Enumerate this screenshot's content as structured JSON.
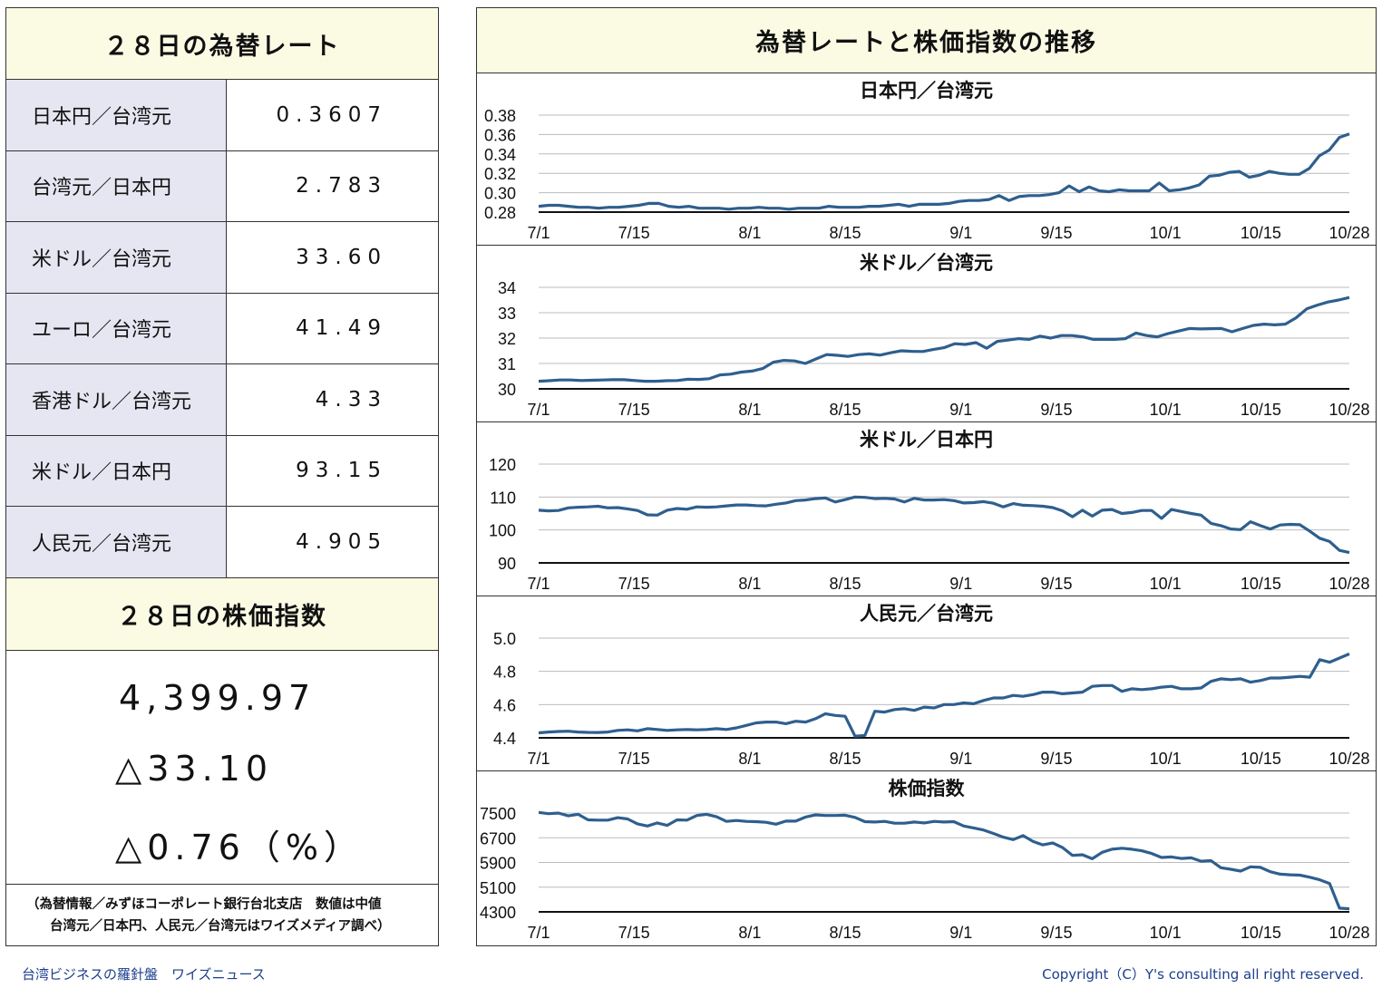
{
  "left_panel": {
    "rates_title": "２８日の為替レート",
    "rates": [
      {
        "label": "日本円／台湾元",
        "value": "0.3607"
      },
      {
        "label": "台湾元／日本円",
        "value": "2.783"
      },
      {
        "label": "米ドル／台湾元",
        "value": "33.60"
      },
      {
        "label": "ユーロ／台湾元",
        "value": "41.49"
      },
      {
        "label": "香港ドル／台湾元",
        "value": "4.33"
      },
      {
        "label": "米ドル／日本円",
        "value": "93.15"
      },
      {
        "label": "人民元／台湾元",
        "value": "4.905"
      }
    ],
    "stock_title": "２８日の株価指数",
    "stock_index": "4,399.97",
    "stock_change": "△33.10",
    "stock_change_pct": "△0.76（%）",
    "note_line1": "（為替情報／みずほコーポレート銀行台北支店　数値は中値",
    "note_line2": "台湾元／日本円、人民元／台湾元はワイズメディア調べ）"
  },
  "right_panel": {
    "title": "為替レートと株価指数の推移"
  },
  "footer": {
    "left": "台湾ビジネスの羅針盤　ワイズニュース",
    "right": "Copyright（C）Y's consulting all right reserved."
  },
  "chart_data": [
    {
      "type": "line",
      "title": "日本円／台湾元",
      "x_ticks": [
        "7/1",
        "7/15",
        "8/1",
        "8/15",
        "9/1",
        "9/15",
        "10/1",
        "10/15",
        "10/28"
      ],
      "y_ticks": [
        "0.28",
        "0.30",
        "0.32",
        "0.34",
        "0.36",
        "0.38"
      ],
      "ylim": [
        0.28,
        0.38
      ],
      "color": "#2e5f8e",
      "values": [
        0.286,
        0.287,
        0.287,
        0.286,
        0.285,
        0.285,
        0.284,
        0.285,
        0.285,
        0.286,
        0.287,
        0.289,
        0.289,
        0.286,
        0.285,
        0.286,
        0.284,
        0.284,
        0.284,
        0.283,
        0.284,
        0.284,
        0.285,
        0.284,
        0.284,
        0.283,
        0.284,
        0.284,
        0.284,
        0.286,
        0.285,
        0.285,
        0.285,
        0.286,
        0.286,
        0.287,
        0.288,
        0.286,
        0.288,
        0.288,
        0.288,
        0.289,
        0.291,
        0.292,
        0.292,
        0.293,
        0.297,
        0.292,
        0.296,
        0.297,
        0.297,
        0.298,
        0.3,
        0.307,
        0.301,
        0.306,
        0.302,
        0.301,
        0.303,
        0.302,
        0.302,
        0.302,
        0.31,
        0.302,
        0.303,
        0.305,
        0.308,
        0.317,
        0.318,
        0.321,
        0.322,
        0.316,
        0.318,
        0.322,
        0.32,
        0.319,
        0.319,
        0.325,
        0.338,
        0.344,
        0.357,
        0.3607
      ]
    },
    {
      "type": "line",
      "title": "米ドル／台湾元",
      "x_ticks": [
        "7/1",
        "7/15",
        "8/1",
        "8/15",
        "9/1",
        "9/15",
        "10/1",
        "10/15",
        "10/28"
      ],
      "y_ticks": [
        "30",
        "31",
        "32",
        "33",
        "34"
      ],
      "ylim": [
        30,
        34
      ],
      "color": "#2e5f8e",
      "values": [
        30.3,
        30.32,
        30.35,
        30.35,
        30.33,
        30.34,
        30.35,
        30.36,
        30.36,
        30.33,
        30.3,
        30.3,
        30.32,
        30.33,
        30.38,
        30.37,
        30.4,
        30.55,
        30.58,
        30.66,
        30.7,
        30.8,
        31.05,
        31.12,
        31.1,
        31.0,
        31.18,
        31.35,
        31.32,
        31.28,
        31.35,
        31.38,
        31.33,
        31.42,
        31.5,
        31.48,
        31.47,
        31.55,
        31.62,
        31.78,
        31.75,
        31.82,
        31.6,
        31.87,
        31.92,
        31.98,
        31.95,
        32.08,
        32.0,
        32.1,
        32.1,
        32.05,
        31.95,
        31.95,
        31.95,
        31.98,
        32.2,
        32.1,
        32.05,
        32.18,
        32.28,
        32.38,
        32.36,
        32.37,
        32.38,
        32.25,
        32.38,
        32.5,
        32.55,
        32.52,
        32.55,
        32.8,
        33.15,
        33.3,
        33.42,
        33.5,
        33.6
      ]
    },
    {
      "type": "line",
      "title": "米ドル／日本円",
      "x_ticks": [
        "7/1",
        "7/15",
        "8/1",
        "8/15",
        "9/1",
        "9/15",
        "10/1",
        "10/15",
        "10/28"
      ],
      "y_ticks": [
        "90",
        "100",
        "110",
        "120"
      ],
      "ylim": [
        90,
        120
      ],
      "color": "#2e5f8e",
      "values": [
        106,
        105.8,
        105.9,
        106.7,
        106.9,
        107.0,
        107.2,
        106.7,
        106.8,
        106.4,
        105.9,
        104.6,
        104.5,
        106.0,
        106.5,
        106.3,
        107.0,
        106.9,
        107.0,
        107.3,
        107.6,
        107.6,
        107.4,
        107.3,
        107.8,
        108.2,
        108.9,
        109.1,
        109.5,
        109.7,
        108.5,
        109.2,
        110.0,
        109.9,
        109.5,
        109.6,
        109.4,
        108.5,
        109.6,
        109.1,
        109.1,
        109.2,
        108.9,
        108.2,
        108.3,
        108.6,
        108.1,
        107.0,
        108.0,
        107.5,
        107.4,
        107.2,
        106.8,
        105.8,
        104.0,
        106.0,
        104.2,
        106.0,
        106.2,
        105.0,
        105.3,
        105.9,
        105.9,
        103.5,
        106.2,
        105.6,
        105.0,
        104.5,
        102.0,
        101.3,
        100.3,
        100.1,
        102.5,
        101.3,
        100.3,
        101.5,
        101.7,
        101.6,
        99.6,
        97.5,
        96.5,
        93.8,
        93.15
      ]
    },
    {
      "type": "line",
      "title": "人民元／台湾元",
      "x_ticks": [
        "7/1",
        "7/15",
        "8/1",
        "8/15",
        "9/1",
        "9/15",
        "10/1",
        "10/15",
        "10/28"
      ],
      "y_ticks": [
        "4.4",
        "4.6",
        "4.8",
        "5.0"
      ],
      "ylim": [
        4.4,
        5.0
      ],
      "color": "#2e5f8e",
      "values": [
        4.43,
        4.435,
        4.438,
        4.44,
        4.435,
        4.433,
        4.432,
        4.435,
        4.445,
        4.448,
        4.442,
        4.455,
        4.45,
        4.445,
        4.448,
        4.45,
        4.448,
        4.45,
        4.455,
        4.45,
        4.46,
        4.475,
        4.49,
        4.495,
        4.495,
        4.485,
        4.5,
        4.495,
        4.515,
        4.545,
        4.535,
        4.53,
        4.41,
        4.415,
        4.56,
        4.555,
        4.57,
        4.575,
        4.565,
        4.585,
        4.58,
        4.6,
        4.6,
        4.61,
        4.605,
        4.625,
        4.64,
        4.64,
        4.655,
        4.65,
        4.66,
        4.675,
        4.675,
        4.665,
        4.67,
        4.675,
        4.71,
        4.715,
        4.715,
        4.68,
        4.695,
        4.69,
        4.695,
        4.705,
        4.71,
        4.695,
        4.695,
        4.7,
        4.74,
        4.755,
        4.75,
        4.755,
        4.735,
        4.745,
        4.76,
        4.76,
        4.765,
        4.77,
        4.765,
        4.87,
        4.855,
        4.88,
        4.905
      ]
    },
    {
      "type": "line",
      "title": "株価指数",
      "x_ticks": [
        "7/1",
        "7/15",
        "8/1",
        "8/15",
        "9/1",
        "9/15",
        "10/1",
        "10/15",
        "10/28"
      ],
      "y_ticks": [
        "4300",
        "5100",
        "5900",
        "6700",
        "7500"
      ],
      "ylim": [
        4300,
        7500
      ],
      "color": "#2e5f8e",
      "values": [
        7520,
        7480,
        7500,
        7410,
        7460,
        7280,
        7270,
        7270,
        7350,
        7310,
        7150,
        7080,
        7180,
        7100,
        7280,
        7270,
        7420,
        7460,
        7380,
        7230,
        7260,
        7230,
        7220,
        7200,
        7140,
        7240,
        7240,
        7370,
        7440,
        7420,
        7420,
        7430,
        7360,
        7220,
        7210,
        7230,
        7170,
        7170,
        7210,
        7180,
        7230,
        7210,
        7220,
        7080,
        7020,
        6950,
        6840,
        6720,
        6640,
        6770,
        6580,
        6470,
        6530,
        6380,
        6130,
        6150,
        6020,
        6230,
        6330,
        6360,
        6330,
        6280,
        6190,
        6060,
        6080,
        6030,
        6050,
        5940,
        5960,
        5730,
        5680,
        5620,
        5760,
        5740,
        5600,
        5520,
        5500,
        5490,
        5420,
        5340,
        5220,
        4420,
        4399.97
      ]
    }
  ]
}
